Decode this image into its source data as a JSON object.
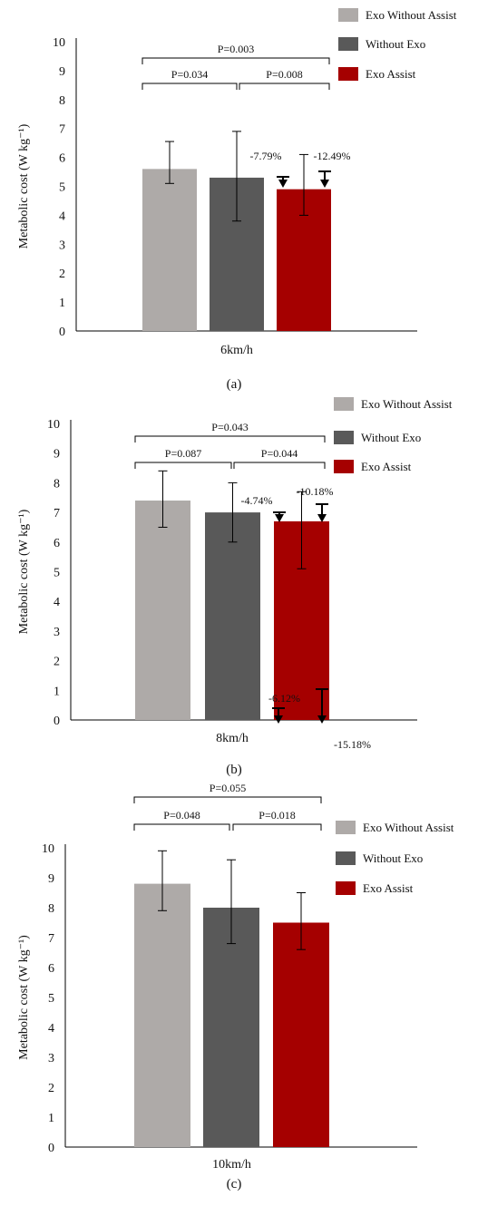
{
  "chart_data": [
    {
      "type": "bar",
      "panel": "(a)",
      "xlabel": "6km/h",
      "ylabel": "Metabolic cost (W kg⁻¹)",
      "ylim": [
        0,
        10
      ],
      "yticks": [
        "0",
        "1",
        "2",
        "3",
        "4",
        "5",
        "6",
        "7",
        "8",
        "9",
        "10"
      ],
      "series": [
        {
          "name": "Exo Without Assist",
          "color": "#aeaaa8",
          "value": 5.6,
          "err_low": 5.1,
          "err_high": 6.55
        },
        {
          "name": "Without Exo",
          "color": "#595959",
          "value": 5.3,
          "err_low": 3.8,
          "err_high": 6.9
        },
        {
          "name": "Exo Assist",
          "color": "#a50000",
          "value": 4.9,
          "err_low": 4.0,
          "err_high": 6.1
        }
      ],
      "pvalues": [
        {
          "pair": [
            "Exo Without Assist",
            "Without Exo"
          ],
          "label": "P=0.034"
        },
        {
          "pair": [
            "Without Exo",
            "Exo Assist"
          ],
          "label": "P=0.008"
        },
        {
          "pair": [
            "Exo Without Assist",
            "Exo Assist"
          ],
          "label": "P=0.003"
        }
      ],
      "reductions": [
        {
          "label": "-7.79%",
          "from": 5.3,
          "to": 4.9
        },
        {
          "label": "-12.49%",
          "from": 5.6,
          "to": 4.9
        }
      ],
      "legend": "top-right"
    },
    {
      "type": "bar",
      "panel": "(b)",
      "xlabel": "8km/h",
      "ylabel": "Metabolic cost (W kg⁻¹)",
      "ylim": [
        0,
        10
      ],
      "yticks": [
        "0",
        "1",
        "2",
        "3",
        "4",
        "5",
        "6",
        "7",
        "8",
        "9",
        "10"
      ],
      "series": [
        {
          "name": "Exo Without Assist",
          "color": "#aeaaa8",
          "value": 7.4,
          "err_low": 6.5,
          "err_high": 8.4
        },
        {
          "name": "Without Exo",
          "color": "#595959",
          "value": 7.0,
          "err_low": 6.0,
          "err_high": 8.0
        },
        {
          "name": "Exo Assist",
          "color": "#a50000",
          "value": 6.7,
          "err_low": 5.1,
          "err_high": 7.7
        }
      ],
      "pvalues": [
        {
          "pair": [
            "Exo Without Assist",
            "Without Exo"
          ],
          "label": "P=0.087"
        },
        {
          "pair": [
            "Without Exo",
            "Exo Assist"
          ],
          "label": "P=0.044"
        },
        {
          "pair": [
            "Exo Without Assist",
            "Exo Assist"
          ],
          "label": "P=0.043"
        }
      ],
      "reductions": [
        {
          "label": "-4.74%",
          "from": 7.0,
          "to": 6.7
        },
        {
          "label": "-10.18%",
          "from": 7.4,
          "to": 6.7
        }
      ],
      "legend": "top-right"
    },
    {
      "type": "bar",
      "panel": "(c)",
      "xlabel": "10km/h",
      "ylabel": "Metabolic cost (W kg⁻¹)",
      "ylim": [
        0,
        10
      ],
      "yticks": [
        "0",
        "1",
        "2",
        "3",
        "4",
        "5",
        "6",
        "7",
        "8",
        "9",
        "10"
      ],
      "series": [
        {
          "name": "Exo Without Assist",
          "color": "#aeaaa8",
          "value": 8.8,
          "err_low": 7.9,
          "err_high": 9.9
        },
        {
          "name": "Without Exo",
          "color": "#595959",
          "value": 8.0,
          "err_low": 6.8,
          "err_high": 9.6
        },
        {
          "name": "Exo Assist",
          "color": "#a50000",
          "value": 7.5,
          "err_low": 6.6,
          "err_high": 8.5
        }
      ],
      "pvalues": [
        {
          "pair": [
            "Exo Without Assist",
            "Without Exo"
          ],
          "label": "P=0.048"
        },
        {
          "pair": [
            "Without Exo",
            "Exo Assist"
          ],
          "label": "P=0.018"
        },
        {
          "pair": [
            "Exo Without Assist",
            "Exo Assist"
          ],
          "label": "P=0.055"
        }
      ],
      "reductions": [
        {
          "label": "-6.12%",
          "from": 8.0,
          "to": 7.5
        },
        {
          "label": "-15.18%",
          "from": 8.8,
          "to": 7.5
        }
      ],
      "legend": "top-right"
    }
  ]
}
